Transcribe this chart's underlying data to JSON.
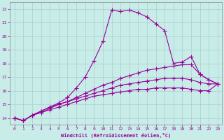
{
  "xlabel": "Windchill (Refroidissement éolien,°C)",
  "background_color": "#c8ece8",
  "line_color": "#990099",
  "grid_color": "#aacccc",
  "ylim": [
    13.5,
    22.5
  ],
  "xlim": [
    -0.5,
    23.5
  ],
  "yticks": [
    14,
    15,
    16,
    17,
    18,
    19,
    20,
    21,
    22
  ],
  "xticks": [
    0,
    1,
    2,
    3,
    4,
    5,
    6,
    7,
    8,
    9,
    10,
    11,
    12,
    13,
    14,
    15,
    16,
    17,
    18,
    19,
    20,
    21,
    22,
    23
  ],
  "series": [
    {
      "x": [
        0,
        1,
        2,
        3,
        4,
        5,
        6,
        7,
        8,
        9,
        10,
        11,
        12,
        13,
        14,
        15,
        16,
        17,
        18,
        19,
        20,
        21,
        22,
        23
      ],
      "y": [
        14.0,
        13.8,
        14.2,
        14.5,
        14.8,
        15.1,
        15.5,
        16.2,
        17.0,
        18.2,
        19.6,
        21.9,
        21.8,
        21.9,
        21.7,
        21.4,
        20.9,
        20.4,
        18.0,
        18.1,
        18.5,
        17.2,
        16.8,
        16.5
      ]
    },
    {
      "x": [
        0,
        1,
        2,
        3,
        4,
        5,
        6,
        7,
        8,
        9,
        10,
        11,
        12,
        13,
        14,
        15,
        16,
        17,
        18,
        19,
        20,
        21,
        22,
        23
      ],
      "y": [
        14.0,
        13.8,
        14.2,
        14.5,
        14.8,
        15.0,
        15.2,
        15.5,
        15.8,
        16.1,
        16.4,
        16.6,
        16.9,
        17.1,
        17.3,
        17.5,
        17.6,
        17.7,
        17.8,
        17.9,
        17.9,
        17.2,
        16.8,
        16.5
      ]
    },
    {
      "x": [
        0,
        1,
        2,
        3,
        4,
        5,
        6,
        7,
        8,
        9,
        10,
        11,
        12,
        13,
        14,
        15,
        16,
        17,
        18,
        19,
        20,
        21,
        22,
        23
      ],
      "y": [
        14.0,
        13.8,
        14.2,
        14.4,
        14.7,
        15.0,
        15.2,
        15.4,
        15.6,
        15.8,
        16.0,
        16.2,
        16.4,
        16.5,
        16.6,
        16.7,
        16.8,
        16.9,
        16.9,
        16.9,
        16.8,
        16.6,
        16.5,
        16.5
      ]
    },
    {
      "x": [
        0,
        1,
        2,
        3,
        4,
        5,
        6,
        7,
        8,
        9,
        10,
        11,
        12,
        13,
        14,
        15,
        16,
        17,
        18,
        19,
        20,
        21,
        22,
        23
      ],
      "y": [
        14.0,
        13.8,
        14.2,
        14.4,
        14.6,
        14.8,
        15.0,
        15.2,
        15.4,
        15.6,
        15.7,
        15.8,
        15.9,
        16.0,
        16.1,
        16.1,
        16.2,
        16.2,
        16.2,
        16.2,
        16.1,
        16.0,
        16.0,
        16.5
      ]
    }
  ]
}
